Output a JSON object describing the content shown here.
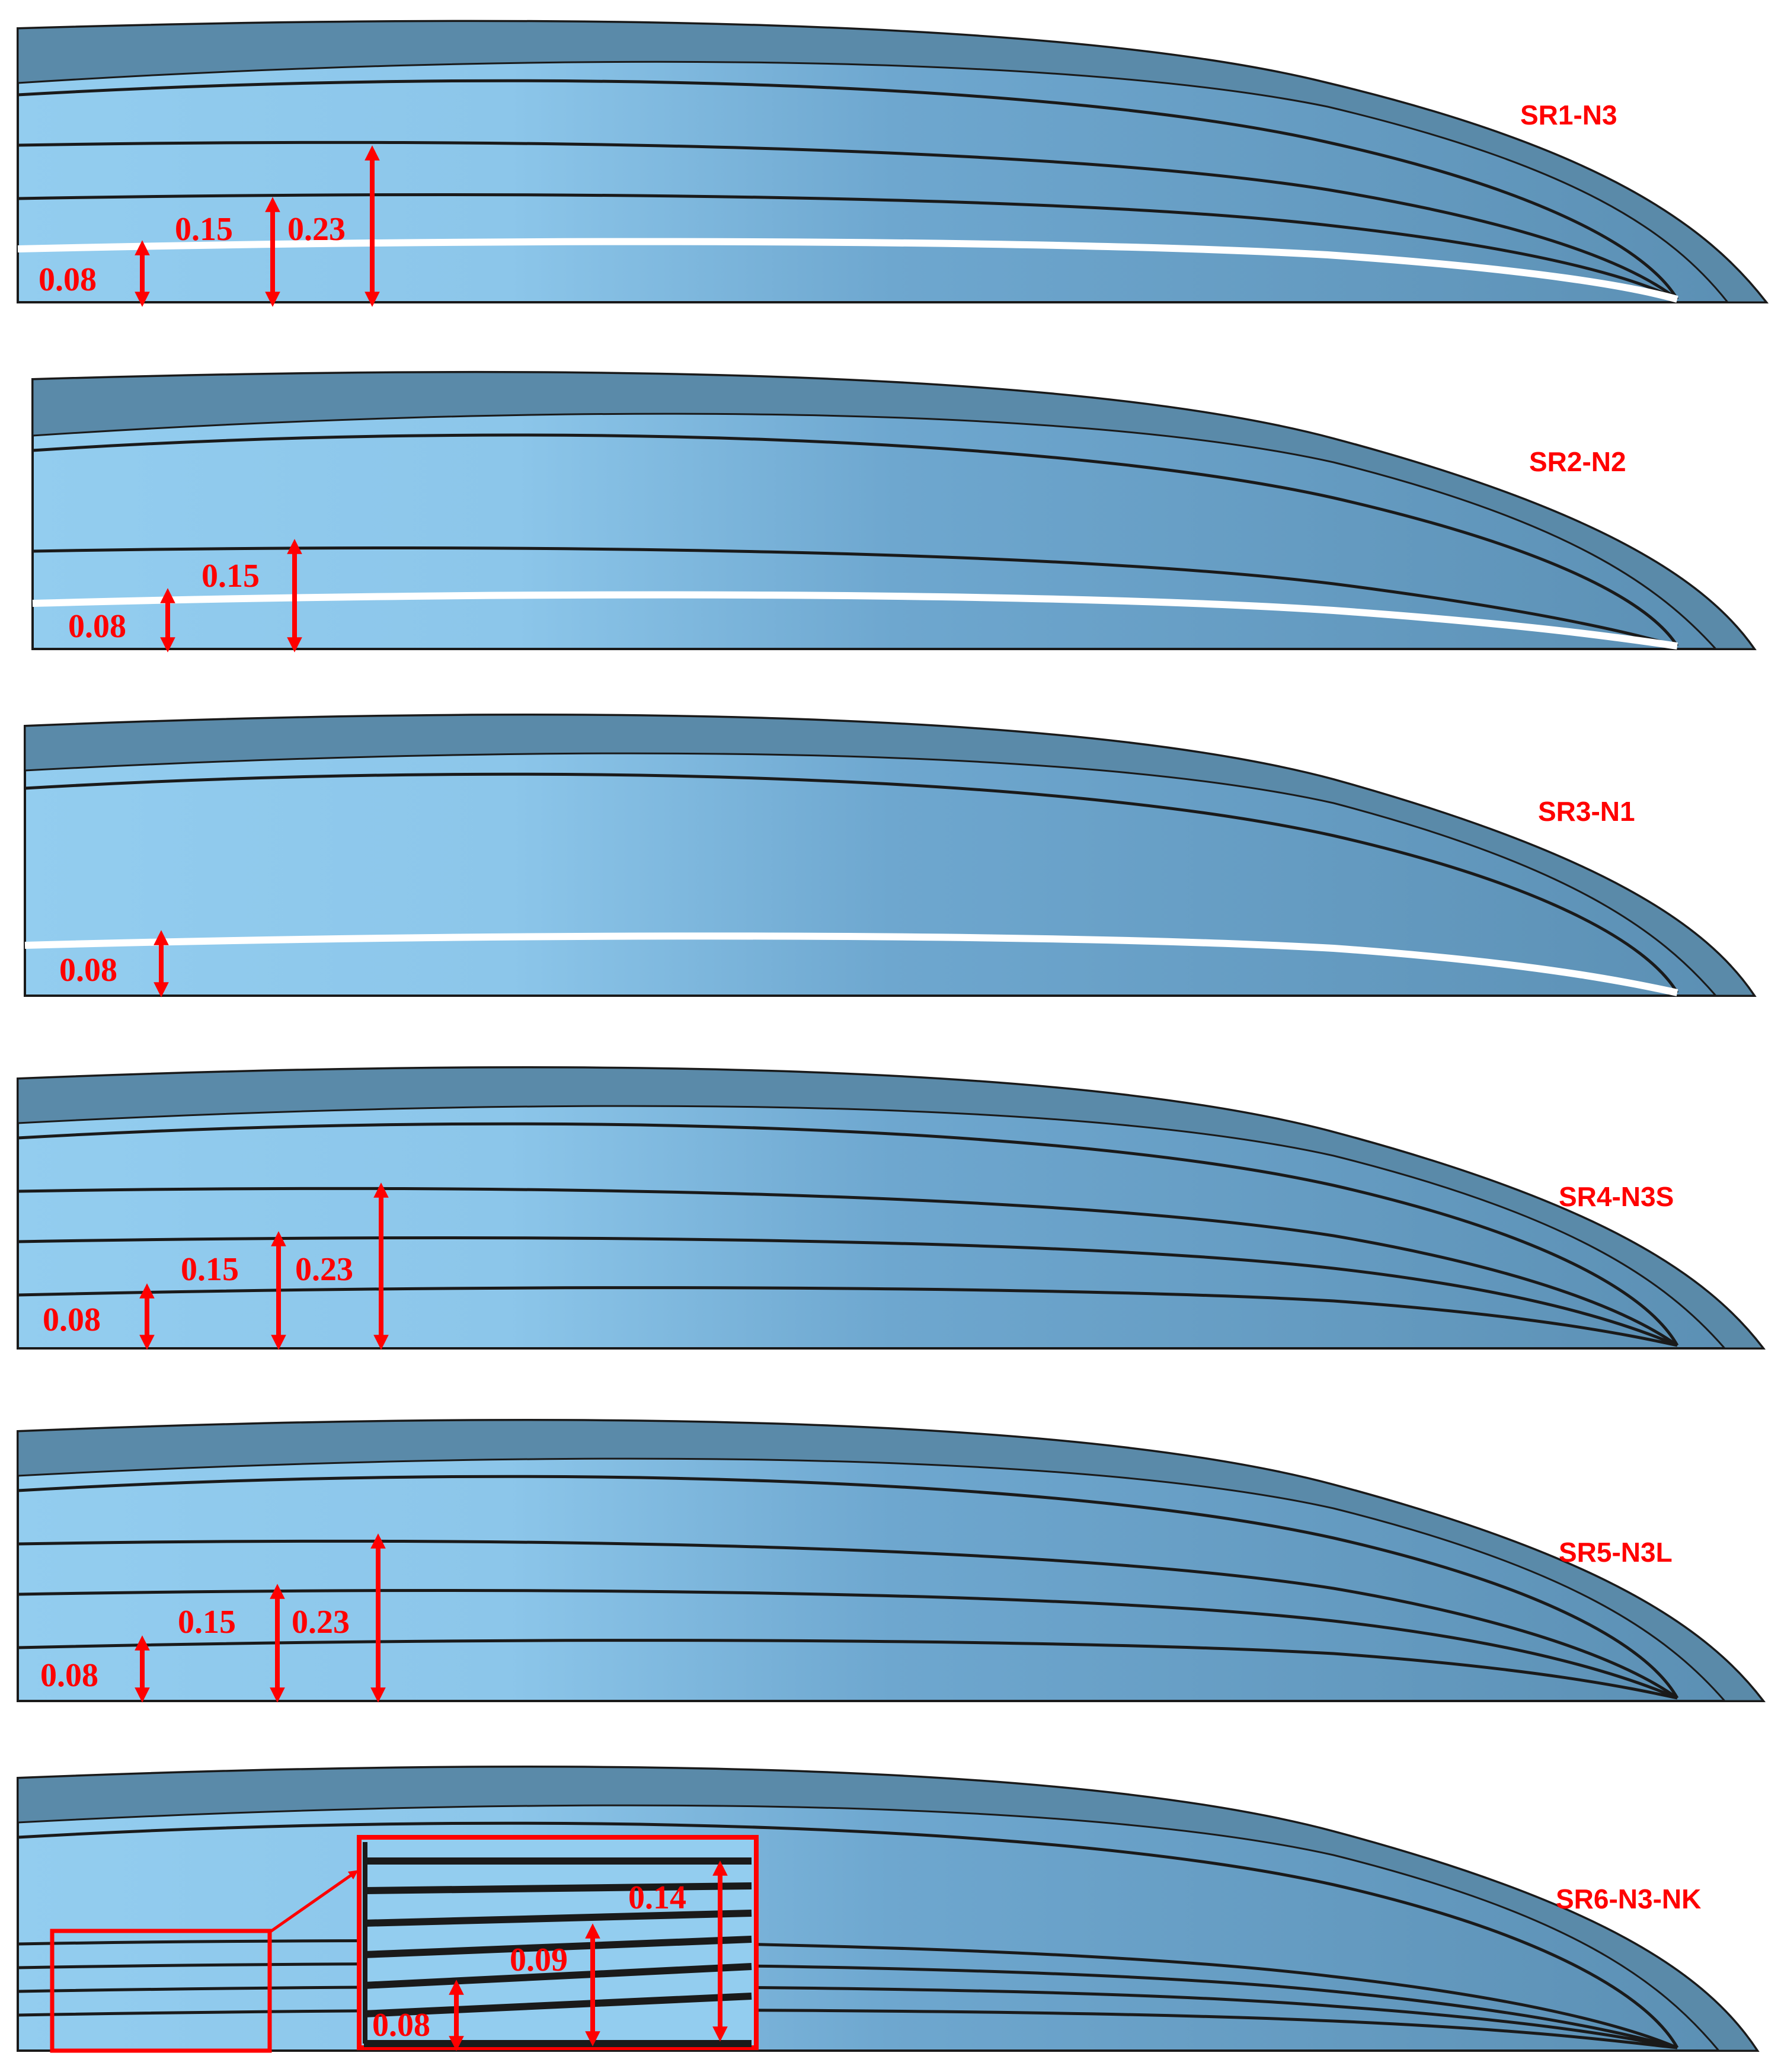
{
  "colors": {
    "blade_light": "#93cdef",
    "blade_mid": "#6ea7cf",
    "blade_edge": "#5b8fb3",
    "blade_top": "#5a8aa9",
    "line": "#1a1a1a",
    "annotation": "#ff0000"
  },
  "panels": [
    {
      "id": "sr1",
      "label": "SR1-N3",
      "dims": [
        "0.08",
        "0.15",
        "0.23"
      ]
    },
    {
      "id": "sr2",
      "label": "SR2-N2",
      "dims": [
        "0.08",
        "0.15"
      ]
    },
    {
      "id": "sr3",
      "label": "SR3-N1",
      "dims": [
        "0.08"
      ]
    },
    {
      "id": "sr4",
      "label": "SR4-N3S",
      "dims": [
        "0.08",
        "0.15",
        "0.23"
      ]
    },
    {
      "id": "sr5",
      "label": "SR5-N3L",
      "dims": [
        "0.08",
        "0.15",
        "0.23"
      ]
    },
    {
      "id": "sr6",
      "label": "SR6-N3-NK",
      "dims": [
        "0.08",
        "0.09",
        "0.14"
      ]
    }
  ]
}
